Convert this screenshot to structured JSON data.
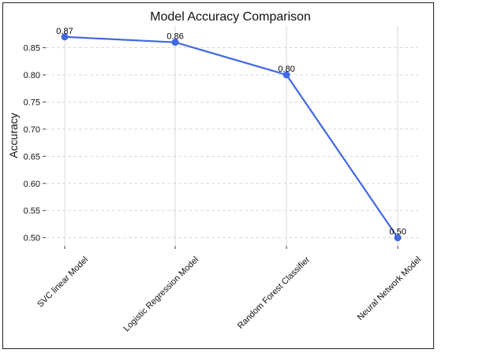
{
  "chart_data": {
    "type": "line",
    "title": "Model Accuracy Comparison",
    "xlabel": "",
    "ylabel": "Accuracy",
    "categories": [
      "SVC linear Model",
      "Logistic Regression Model",
      "Random Forest Classifier",
      "Neural Network Model"
    ],
    "series": [
      {
        "values": [
          0.87,
          0.86,
          0.8,
          0.5
        ],
        "data_labels": [
          "0.87",
          "0.86",
          "0.80",
          "0.50"
        ]
      }
    ],
    "yticks": [
      0.5,
      0.55,
      0.6,
      0.65,
      0.7,
      0.75,
      0.8,
      0.85
    ],
    "ytick_labels": [
      "0.50",
      "0.55",
      "0.60",
      "0.65",
      "0.70",
      "0.75",
      "0.80",
      "0.85"
    ],
    "ylim": [
      0.485,
      0.89
    ],
    "grid": true,
    "line_color": "#4169e1",
    "marker_color": "#4169e1",
    "grid_color": "#d9d9d9"
  }
}
